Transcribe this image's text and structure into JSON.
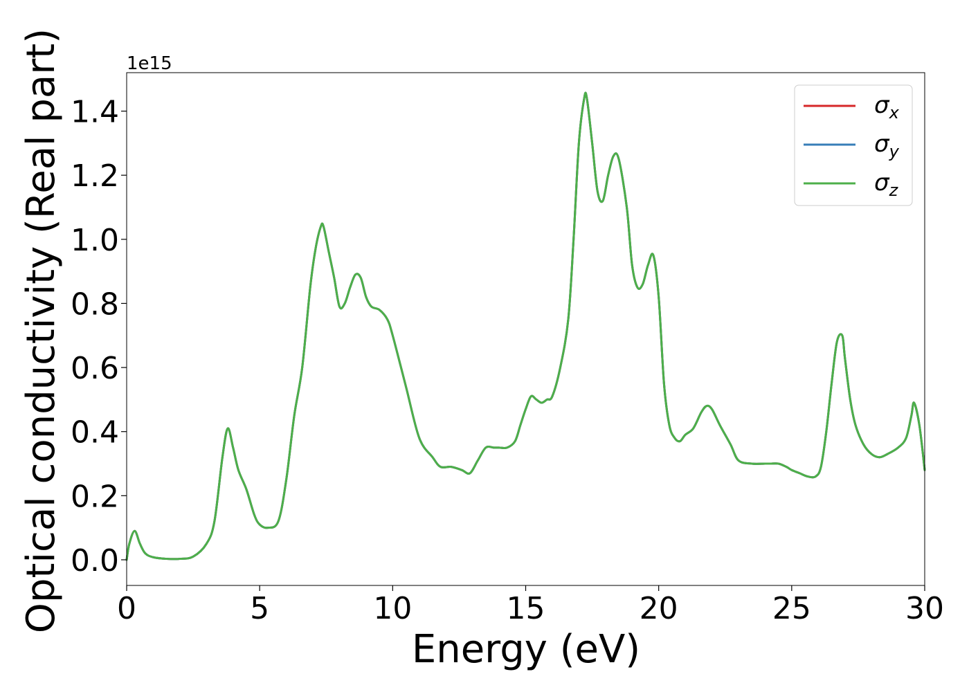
{
  "chart_data": {
    "type": "line",
    "xlabel": "Energy (eV)",
    "ylabel": "Optical conductivity (Real part)",
    "y_scale_label": "1e15",
    "xlim": [
      0,
      30
    ],
    "ylim": [
      -0.08,
      1.52
    ],
    "x_ticks": [
      0,
      5,
      10,
      15,
      20,
      25,
      30
    ],
    "x_tick_labels": [
      "0",
      "5",
      "10",
      "15",
      "20",
      "25",
      "30"
    ],
    "y_ticks": [
      0.0,
      0.2,
      0.4,
      0.6,
      0.8,
      1.0,
      1.2,
      1.4
    ],
    "y_tick_labels": [
      "0.0",
      "0.2",
      "0.4",
      "0.6",
      "0.8",
      "1.0",
      "1.2",
      "1.4"
    ],
    "legend_placement": "top-right",
    "grid": false,
    "x": [
      0,
      0.1,
      0.3,
      0.5,
      0.7,
      1.0,
      1.5,
      2.0,
      2.5,
      3.0,
      3.3,
      3.6,
      3.8,
      4.0,
      4.2,
      4.5,
      4.8,
      5.0,
      5.3,
      5.7,
      6.0,
      6.3,
      6.6,
      6.9,
      7.1,
      7.3,
      7.4,
      7.6,
      7.8,
      8.0,
      8.2,
      8.4,
      8.6,
      8.8,
      9.0,
      9.2,
      9.5,
      9.8,
      10.0,
      10.5,
      11.0,
      11.5,
      11.8,
      12.2,
      12.6,
      12.9,
      13.2,
      13.5,
      13.8,
      14.0,
      14.3,
      14.6,
      14.8,
      15.0,
      15.2,
      15.4,
      15.6,
      15.8,
      16.0,
      16.3,
      16.6,
      16.8,
      17.0,
      17.2,
      17.3,
      17.5,
      17.7,
      17.9,
      18.1,
      18.3,
      18.5,
      18.8,
      19.0,
      19.2,
      19.4,
      19.6,
      19.8,
      20.0,
      20.2,
      20.4,
      20.6,
      20.8,
      21.0,
      21.3,
      21.6,
      21.8,
      22.0,
      22.3,
      22.7,
      23.0,
      23.5,
      24.0,
      24.2,
      24.5,
      24.8,
      25.0,
      25.3,
      25.6,
      25.9,
      26.1,
      26.3,
      26.5,
      26.7,
      26.9,
      27.0,
      27.2,
      27.4,
      27.7,
      28.0,
      28.3,
      28.6,
      29.0,
      29.3,
      29.5,
      29.6,
      29.8,
      30.0
    ],
    "series": [
      {
        "name": "σx",
        "legend_main": "σ",
        "legend_sub": "x",
        "color": "#d62728",
        "values": [
          0.0,
          0.05,
          0.09,
          0.05,
          0.02,
          0.008,
          0.003,
          0.003,
          0.01,
          0.05,
          0.12,
          0.32,
          0.41,
          0.35,
          0.28,
          0.22,
          0.14,
          0.11,
          0.1,
          0.12,
          0.25,
          0.45,
          0.6,
          0.85,
          0.97,
          1.04,
          1.04,
          0.96,
          0.88,
          0.79,
          0.8,
          0.85,
          0.89,
          0.88,
          0.82,
          0.79,
          0.78,
          0.75,
          0.7,
          0.54,
          0.38,
          0.32,
          0.29,
          0.29,
          0.28,
          0.27,
          0.31,
          0.35,
          0.35,
          0.35,
          0.35,
          0.37,
          0.42,
          0.47,
          0.51,
          0.5,
          0.49,
          0.5,
          0.51,
          0.6,
          0.75,
          1.0,
          1.3,
          1.44,
          1.44,
          1.3,
          1.15,
          1.12,
          1.2,
          1.26,
          1.25,
          1.1,
          0.92,
          0.85,
          0.86,
          0.92,
          0.95,
          0.82,
          0.55,
          0.42,
          0.38,
          0.37,
          0.39,
          0.41,
          0.46,
          0.48,
          0.47,
          0.42,
          0.36,
          0.31,
          0.3,
          0.3,
          0.3,
          0.3,
          0.29,
          0.28,
          0.27,
          0.26,
          0.26,
          0.29,
          0.4,
          0.55,
          0.68,
          0.7,
          0.63,
          0.5,
          0.42,
          0.36,
          0.33,
          0.32,
          0.33,
          0.35,
          0.38,
          0.45,
          0.49,
          0.42,
          0.28
        ]
      },
      {
        "name": "σy",
        "legend_main": "σ",
        "legend_sub": "y",
        "color": "#377eb8",
        "values": [
          0.0,
          0.05,
          0.09,
          0.05,
          0.02,
          0.008,
          0.003,
          0.003,
          0.01,
          0.05,
          0.12,
          0.32,
          0.41,
          0.35,
          0.28,
          0.22,
          0.14,
          0.11,
          0.1,
          0.12,
          0.25,
          0.45,
          0.6,
          0.85,
          0.97,
          1.04,
          1.04,
          0.96,
          0.88,
          0.79,
          0.8,
          0.85,
          0.89,
          0.88,
          0.82,
          0.79,
          0.78,
          0.75,
          0.7,
          0.54,
          0.38,
          0.32,
          0.29,
          0.29,
          0.28,
          0.27,
          0.31,
          0.35,
          0.35,
          0.35,
          0.35,
          0.37,
          0.42,
          0.47,
          0.51,
          0.5,
          0.49,
          0.5,
          0.51,
          0.6,
          0.75,
          1.0,
          1.3,
          1.44,
          1.44,
          1.3,
          1.15,
          1.12,
          1.2,
          1.26,
          1.25,
          1.1,
          0.92,
          0.85,
          0.86,
          0.92,
          0.95,
          0.82,
          0.55,
          0.42,
          0.38,
          0.37,
          0.39,
          0.41,
          0.46,
          0.48,
          0.47,
          0.42,
          0.36,
          0.31,
          0.3,
          0.3,
          0.3,
          0.3,
          0.29,
          0.28,
          0.27,
          0.26,
          0.26,
          0.29,
          0.4,
          0.55,
          0.68,
          0.7,
          0.63,
          0.5,
          0.42,
          0.36,
          0.33,
          0.32,
          0.33,
          0.35,
          0.38,
          0.45,
          0.49,
          0.42,
          0.28
        ]
      },
      {
        "name": "σz",
        "legend_main": "σ",
        "legend_sub": "z",
        "color": "#4daf4a",
        "values": [
          0.0,
          0.05,
          0.09,
          0.05,
          0.02,
          0.008,
          0.003,
          0.003,
          0.01,
          0.05,
          0.12,
          0.32,
          0.41,
          0.35,
          0.28,
          0.22,
          0.14,
          0.11,
          0.1,
          0.12,
          0.25,
          0.45,
          0.6,
          0.85,
          0.97,
          1.04,
          1.04,
          0.96,
          0.88,
          0.79,
          0.8,
          0.85,
          0.89,
          0.88,
          0.82,
          0.79,
          0.78,
          0.75,
          0.7,
          0.54,
          0.38,
          0.32,
          0.29,
          0.29,
          0.28,
          0.27,
          0.31,
          0.35,
          0.35,
          0.35,
          0.35,
          0.37,
          0.42,
          0.47,
          0.51,
          0.5,
          0.49,
          0.5,
          0.51,
          0.6,
          0.75,
          1.0,
          1.3,
          1.44,
          1.44,
          1.3,
          1.15,
          1.12,
          1.2,
          1.26,
          1.25,
          1.1,
          0.92,
          0.85,
          0.86,
          0.92,
          0.95,
          0.82,
          0.55,
          0.42,
          0.38,
          0.37,
          0.39,
          0.41,
          0.46,
          0.48,
          0.47,
          0.42,
          0.36,
          0.31,
          0.3,
          0.3,
          0.3,
          0.3,
          0.29,
          0.28,
          0.27,
          0.26,
          0.26,
          0.29,
          0.4,
          0.55,
          0.68,
          0.7,
          0.63,
          0.5,
          0.42,
          0.36,
          0.33,
          0.32,
          0.33,
          0.35,
          0.38,
          0.45,
          0.49,
          0.42,
          0.28
        ]
      }
    ]
  }
}
